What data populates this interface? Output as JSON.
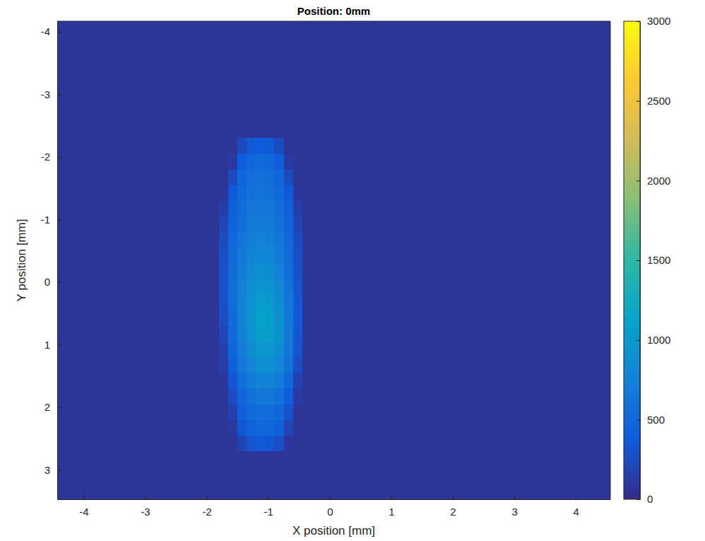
{
  "chart_data": {
    "type": "heatmap",
    "title": "Position: 0mm",
    "x_label": "X position [mm]",
    "y_label": "Y position [mm]",
    "xlim": [
      -4.43,
      4.56
    ],
    "xticks": [
      -4,
      -3,
      -2,
      -1,
      0,
      1,
      2,
      3,
      4
    ],
    "ylim": [
      3.47,
      -4.17
    ],
    "yticks": [
      -4,
      -3,
      -2,
      -1,
      0,
      1,
      2,
      3
    ],
    "x_edges": [
      -4.43,
      -1.8,
      -1.65,
      -1.5,
      -1.35,
      -1.2,
      -1.05,
      -0.9,
      -0.75,
      -0.6,
      -0.45,
      4.56
    ],
    "y_edges": [
      -4.17,
      -2.3,
      -2.05,
      -1.8,
      -1.55,
      -1.3,
      -1.05,
      -0.8,
      -0.55,
      -0.3,
      -0.05,
      0.2,
      0.45,
      0.7,
      0.95,
      1.2,
      1.45,
      1.7,
      1.95,
      2.2,
      2.45,
      2.7,
      3.47
    ],
    "cells": [
      [
        80,
        80,
        80,
        80,
        80,
        80,
        80,
        80,
        80,
        80,
        80
      ],
      [
        80,
        80,
        80,
        250,
        350,
        380,
        350,
        250,
        80,
        80,
        80
      ],
      [
        80,
        80,
        120,
        400,
        500,
        520,
        500,
        400,
        120,
        80,
        80
      ],
      [
        80,
        80,
        250,
        480,
        560,
        580,
        560,
        480,
        250,
        80,
        80
      ],
      [
        80,
        100,
        350,
        520,
        600,
        620,
        600,
        520,
        350,
        100,
        80
      ],
      [
        80,
        150,
        420,
        560,
        640,
        660,
        640,
        560,
        420,
        150,
        80
      ],
      [
        80,
        200,
        460,
        600,
        680,
        700,
        680,
        600,
        460,
        200,
        80
      ],
      [
        80,
        250,
        500,
        640,
        720,
        760,
        730,
        640,
        500,
        250,
        80
      ],
      [
        80,
        280,
        520,
        680,
        780,
        820,
        800,
        700,
        530,
        280,
        80
      ],
      [
        80,
        300,
        540,
        720,
        840,
        900,
        880,
        760,
        560,
        300,
        80
      ],
      [
        80,
        300,
        560,
        760,
        900,
        980,
        950,
        820,
        600,
        320,
        80
      ],
      [
        80,
        280,
        560,
        780,
        950,
        1050,
        1020,
        880,
        640,
        340,
        80
      ],
      [
        80,
        260,
        540,
        770,
        960,
        1100,
        1080,
        920,
        660,
        350,
        80
      ],
      [
        80,
        220,
        520,
        740,
        940,
        1080,
        1080,
        930,
        660,
        340,
        80
      ],
      [
        80,
        180,
        480,
        700,
        880,
        1000,
        1000,
        880,
        640,
        320,
        80
      ],
      [
        80,
        140,
        420,
        640,
        800,
        900,
        900,
        800,
        580,
        260,
        80
      ],
      [
        80,
        100,
        340,
        560,
        700,
        780,
        780,
        700,
        500,
        180,
        80
      ],
      [
        80,
        80,
        260,
        480,
        600,
        660,
        660,
        600,
        400,
        120,
        80
      ],
      [
        80,
        80,
        180,
        420,
        520,
        560,
        560,
        500,
        300,
        80,
        80
      ],
      [
        80,
        80,
        120,
        340,
        460,
        500,
        480,
        420,
        200,
        80,
        80
      ],
      [
        80,
        80,
        80,
        200,
        320,
        360,
        340,
        260,
        100,
        80,
        80
      ],
      [
        80,
        80,
        80,
        80,
        80,
        80,
        80,
        80,
        80,
        80,
        80
      ]
    ],
    "colorbar_lim": [
      0,
      3000
    ],
    "colorbar_ticks": [
      0,
      500,
      1000,
      1500,
      2000,
      2500,
      3000
    ]
  }
}
